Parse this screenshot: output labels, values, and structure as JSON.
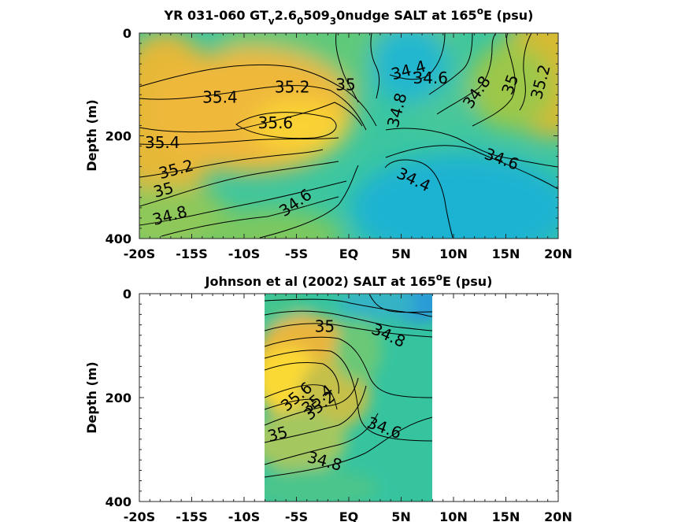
{
  "chart_data": [
    {
      "type": "heatmap",
      "title_parts": [
        "YR 031-060 GT",
        "v",
        "2.6",
        "0",
        "509",
        "3",
        "0nudge SALT at 165",
        "o",
        "E (psu)"
      ],
      "xlabel": "",
      "ylabel": "Depth (m)",
      "x_ticks": [
        "-20S",
        "-15S",
        "-10S",
        "-5S",
        "EQ",
        "5N",
        "10N",
        "15N",
        "20N"
      ],
      "y_ticks": [
        "0",
        "200",
        "400"
      ],
      "xlim": [
        -20,
        20
      ],
      "ylim": [
        0,
        400
      ],
      "data_extent": [
        -20,
        20
      ],
      "contour_labels": [
        {
          "text": "35.4",
          "x": -12.3,
          "y": 125,
          "rot": 0
        },
        {
          "text": "35.2",
          "x": -5.4,
          "y": 105,
          "rot": 0
        },
        {
          "text": "35.6",
          "x": -7.0,
          "y": 175,
          "rot": 0
        },
        {
          "text": "35",
          "x": -0.3,
          "y": 100,
          "rot": 0
        },
        {
          "text": "34.4",
          "x": 5.7,
          "y": 72,
          "rot": -15
        },
        {
          "text": "34.6",
          "x": 7.8,
          "y": 87,
          "rot": 0
        },
        {
          "text": "34.8",
          "x": 12.2,
          "y": 115,
          "rot": -55
        },
        {
          "text": "35",
          "x": 15.4,
          "y": 100,
          "rot": -70
        },
        {
          "text": "35.2",
          "x": 18.3,
          "y": 95,
          "rot": -75
        },
        {
          "text": "34.8",
          "x": 4.6,
          "y": 150,
          "rot": -75
        },
        {
          "text": "35.4",
          "x": -17.8,
          "y": 213,
          "rot": 0
        },
        {
          "text": "35.2",
          "x": -16.5,
          "y": 265,
          "rot": -15
        },
        {
          "text": "35",
          "x": -17.7,
          "y": 305,
          "rot": -15
        },
        {
          "text": "34.8",
          "x": -17.1,
          "y": 355,
          "rot": -15
        },
        {
          "text": "34.6",
          "x": -5.1,
          "y": 330,
          "rot": -35
        },
        {
          "text": "34.6",
          "x": 14.6,
          "y": 245,
          "rot": 20
        },
        {
          "text": "34.4",
          "x": 6.2,
          "y": 285,
          "rot": 25
        }
      ]
    },
    {
      "type": "heatmap",
      "title_parts": [
        "Johnson et al (2002) SALT at 165",
        "o",
        "E (psu)"
      ],
      "xlabel": "",
      "ylabel": "Depth (m)",
      "x_ticks": [
        "-20S",
        "-15S",
        "-10S",
        "-5S",
        "EQ",
        "5N",
        "10N",
        "15N",
        "20N"
      ],
      "y_ticks": [
        "0",
        "200",
        "400"
      ],
      "xlim": [
        -20,
        20
      ],
      "ylim": [
        0,
        400
      ],
      "data_extent": [
        -8,
        8
      ],
      "contour_labels": [
        {
          "text": "35",
          "x": -2.3,
          "y": 63,
          "rot": 0
        },
        {
          "text": "34.8",
          "x": 3.8,
          "y": 80,
          "rot": 25
        },
        {
          "text": "35.6",
          "x": -5.0,
          "y": 198,
          "rot": -40
        },
        {
          "text": "35.4",
          "x": -3.0,
          "y": 203,
          "rot": -40
        },
        {
          "text": "35.2",
          "x": -2.8,
          "y": 215,
          "rot": -40
        },
        {
          "text": "35",
          "x": -6.8,
          "y": 270,
          "rot": -15
        },
        {
          "text": "34.6",
          "x": 3.4,
          "y": 258,
          "rot": 20
        },
        {
          "text": "34.8",
          "x": -2.3,
          "y": 322,
          "rot": 15
        }
      ]
    }
  ]
}
